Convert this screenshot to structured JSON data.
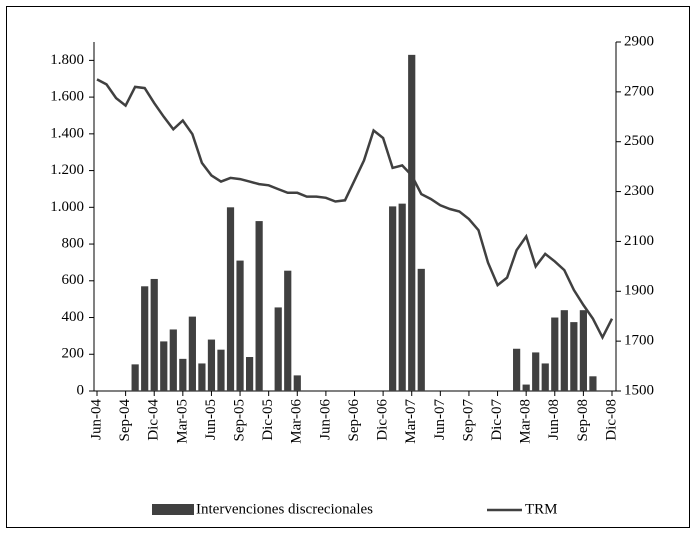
{
  "chart_data": {
    "type": "bar_line",
    "categories": [
      "Jun-04",
      null,
      null,
      "Sep-04",
      null,
      null,
      "Dic-04",
      null,
      null,
      "Mar-05",
      null,
      null,
      "Jun-05",
      null,
      null,
      "Sep-05",
      null,
      null,
      "Dic-05",
      null,
      null,
      "Mar-06",
      null,
      null,
      "Jun-06",
      null,
      null,
      "Sep-06",
      null,
      null,
      "Dic-06",
      null,
      null,
      "Mar-07",
      null,
      null,
      "Jun-07",
      null,
      null,
      "Sep-07",
      null,
      null,
      "Dic-07",
      null,
      null,
      "Mar-08",
      null,
      null,
      "Jun-08",
      null,
      null,
      "Sep-08",
      null,
      null,
      "Dic-08"
    ],
    "series": [
      {
        "name": "Intervenciones discrecionales",
        "color": "#404040",
        "values": [
          0,
          0,
          0,
          0,
          145,
          570,
          610,
          270,
          335,
          175,
          405,
          150,
          280,
          225,
          1000,
          710,
          185,
          925,
          0,
          455,
          655,
          85,
          0,
          0,
          0,
          0,
          0,
          0,
          0,
          0,
          0,
          1005,
          1020,
          1830,
          665,
          0,
          0,
          0,
          0,
          0,
          0,
          0,
          0,
          0,
          230,
          35,
          210,
          150,
          400,
          440,
          375,
          440,
          80,
          0,
          0
        ]
      },
      {
        "name": "TRM",
        "color": "#404040",
        "axis": "y2",
        "values": [
          2750,
          2730,
          2675,
          2645,
          2720,
          2715,
          2655,
          2600,
          2550,
          2585,
          2530,
          2415,
          2365,
          2340,
          2355,
          2350,
          2340,
          2330,
          2325,
          2310,
          2295,
          2295,
          2280,
          2280,
          2275,
          2260,
          2265,
          2345,
          2425,
          2545,
          2515,
          2395,
          2405,
          2365,
          2290,
          2270,
          2245,
          2230,
          2220,
          2190,
          2145,
          2015,
          1925,
          1955,
          2065,
          2120,
          2000,
          2050,
          2020,
          1985,
          1905,
          1845,
          1790,
          1715,
          1790
        ]
      }
    ],
    "ylim": [
      0,
      1900
    ],
    "yticks": [
      0,
      200,
      400,
      600,
      800,
      {
        "value": 1000,
        "label": "1.000"
      },
      {
        "value": 1200,
        "label": "1.200"
      },
      {
        "value": 1400,
        "label": "1.400"
      },
      {
        "value": 1600,
        "label": "1.600"
      },
      {
        "value": 1800,
        "label": "1.800"
      }
    ],
    "y2lim": [
      1500,
      2900
    ],
    "y2ticks": [
      1500,
      1700,
      1900,
      2100,
      2300,
      2500,
      2700,
      2900
    ]
  }
}
